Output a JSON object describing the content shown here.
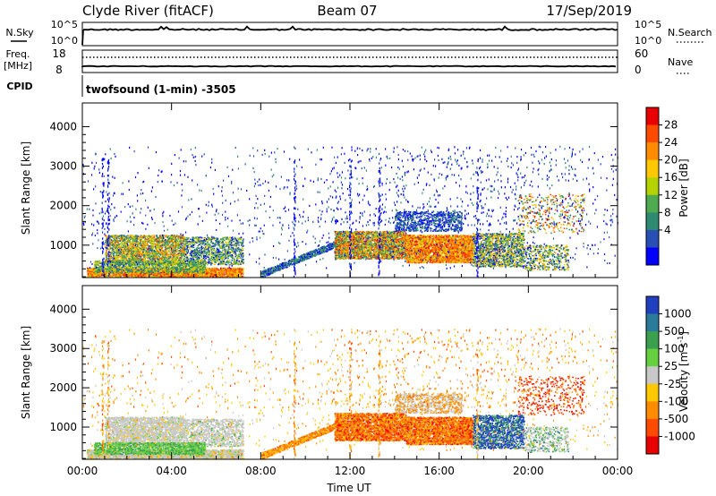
{
  "header": {
    "station": "Clyde River (fitACF)",
    "beam": "Beam 07",
    "date": "17/Sep/2019"
  },
  "noise_panel": {
    "left_label": "N.Sky",
    "left_ticks": [
      "10^5",
      "10^0"
    ],
    "right_label": "N.Search",
    "right_ticks": [
      "10^5",
      "10^0"
    ]
  },
  "freq_panel": {
    "left_label_top": "Freq.",
    "left_label_bottom": "[MHz]",
    "left_ticks": [
      "18",
      "8"
    ],
    "right_label": "Nave",
    "right_ticks": [
      "60",
      "0"
    ]
  },
  "cpid": {
    "label": "CPID",
    "text": "twofsound (1-min) -3505"
  },
  "chart_data": [
    {
      "type": "heatmap",
      "quantity": "Power",
      "ylabel": "Slant Range [km]",
      "xlabel": "",
      "xlim_hours": [
        0,
        24
      ],
      "ylim": [
        180,
        4600
      ],
      "yticks": [
        "1000",
        "2000",
        "3000",
        "4000"
      ],
      "xticks": [
        "00:00",
        "04:00",
        "08:00",
        "12:00",
        "16:00",
        "20:00",
        "00:00"
      ],
      "colorbar": {
        "label": "Power [dB]",
        "ticks": [
          "28",
          "24",
          "20",
          "16",
          "12",
          "8",
          "4"
        ],
        "colors": [
          "#e80000",
          "#ff4b00",
          "#ff8c00",
          "#ffc800",
          "#b4d200",
          "#50aa50",
          "#2e8a70",
          "#2850b4",
          "#0000ff"
        ]
      }
    },
    {
      "type": "heatmap",
      "quantity": "Velocity",
      "ylabel": "Slant Range [km]",
      "xlabel": "Time UT",
      "xlim_hours": [
        0,
        24
      ],
      "ylim": [
        180,
        4600
      ],
      "yticks": [
        "1000",
        "2000",
        "3000",
        "4000"
      ],
      "xticks": [
        "00:00",
        "04:00",
        "08:00",
        "12:00",
        "16:00",
        "20:00",
        "00:00"
      ],
      "colorbar": {
        "label_main": "Velocity [m s",
        "label_sup": "-1",
        "label_end": "]",
        "ticks": [
          "1000",
          "500",
          "100",
          "25",
          "-25",
          "-100",
          "-500",
          "-1000"
        ],
        "colors": [
          "#2040c0",
          "#2a7a9a",
          "#3aa050",
          "#66d040",
          "#c8c8c8",
          "#ffc800",
          "#ff8c00",
          "#ff4b00",
          "#e80000"
        ]
      }
    }
  ]
}
